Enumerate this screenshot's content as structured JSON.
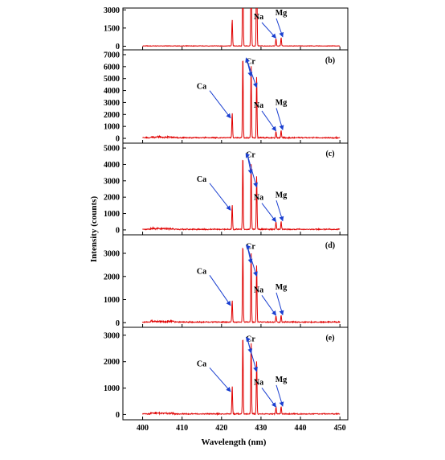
{
  "chart_data": {
    "type": "line",
    "xlabel": "Wavelength (nm)",
    "ylabel": "Intensity (counts)",
    "xlim": [
      395,
      452
    ],
    "x_ticks": [
      400,
      410,
      420,
      430,
      440,
      450
    ],
    "line_color": "#e00000",
    "annotation_color": "#1a3fd0",
    "peak_positions_nm": {
      "Ca": 422.7,
      "Cr1": 425.4,
      "Cr2": 427.5,
      "Cr3": 428.9,
      "Na": 433.8,
      "Mg": 435.1
    },
    "panels": [
      {
        "label": "",
        "ylim": [
          -300,
          3150
        ],
        "y_ticks": [
          0,
          1500,
          3000
        ],
        "y_tick_labels": [
          "0",
          "1500",
          "3000"
        ],
        "peaks": [
          {
            "name": "Ca",
            "x": 422.7,
            "y": 2200
          },
          {
            "name": "Cr1",
            "x": 425.4,
            "y": 9000
          },
          {
            "name": "Cr2",
            "x": 427.5,
            "y": 9000
          },
          {
            "name": "Cr3",
            "x": 428.9,
            "y": 9000
          },
          {
            "name": "Na",
            "x": 433.8,
            "y": 600
          },
          {
            "name": "Mg",
            "x": 435.1,
            "y": 700
          }
        ],
        "annotations": [
          "Na",
          "Mg"
        ]
      },
      {
        "label": "(b)",
        "ylim": [
          -400,
          7400
        ],
        "y_ticks": [
          0,
          1000,
          2000,
          3000,
          4000,
          5000,
          6000,
          7000
        ],
        "y_tick_labels": [
          "0",
          "1000",
          "2000",
          "3000",
          "4000",
          "5000",
          "6000",
          "7000"
        ],
        "peaks": [
          {
            "name": "Ca",
            "x": 422.7,
            "y": 2100
          },
          {
            "name": "Cr1",
            "x": 425.4,
            "y": 7000
          },
          {
            "name": "Cr2",
            "x": 427.5,
            "y": 6100
          },
          {
            "name": "Cr3",
            "x": 428.9,
            "y": 5200
          },
          {
            "name": "Na",
            "x": 433.8,
            "y": 550
          },
          {
            "name": "Mg",
            "x": 435.1,
            "y": 650
          }
        ],
        "annotations": [
          "Ca",
          "Cr",
          "Na",
          "Mg"
        ]
      },
      {
        "label": "(c)",
        "ylim": [
          -300,
          5300
        ],
        "y_ticks": [
          0,
          1000,
          2000,
          3000,
          4000,
          5000
        ],
        "y_tick_labels": [
          "0",
          "1000",
          "2000",
          "3000",
          "4000",
          "5000"
        ],
        "peaks": [
          {
            "name": "Ca",
            "x": 422.7,
            "y": 1500
          },
          {
            "name": "Cr1",
            "x": 425.4,
            "y": 4600
          },
          {
            "name": "Cr2",
            "x": 427.5,
            "y": 4100
          },
          {
            "name": "Cr3",
            "x": 428.9,
            "y": 3300
          },
          {
            "name": "Na",
            "x": 433.8,
            "y": 450
          },
          {
            "name": "Mg",
            "x": 435.1,
            "y": 500
          }
        ],
        "annotations": [
          "Ca",
          "Cr",
          "Na",
          "Mg"
        ]
      },
      {
        "label": "(d)",
        "ylim": [
          -200,
          3800
        ],
        "y_ticks": [
          0,
          1000,
          2000,
          3000
        ],
        "y_tick_labels": [
          "0",
          "1000",
          "2000",
          "3000"
        ],
        "peaks": [
          {
            "name": "Ca",
            "x": 422.7,
            "y": 950
          },
          {
            "name": "Cr1",
            "x": 425.4,
            "y": 3500
          },
          {
            "name": "Cr2",
            "x": 427.5,
            "y": 3050
          },
          {
            "name": "Cr3",
            "x": 428.9,
            "y": 2500
          },
          {
            "name": "Na",
            "x": 433.8,
            "y": 280
          },
          {
            "name": "Mg",
            "x": 435.1,
            "y": 300
          }
        ],
        "annotations": [
          "Ca",
          "Cr",
          "Na",
          "Mg"
        ]
      },
      {
        "label": "(e)",
        "ylim": [
          -200,
          3300
        ],
        "y_ticks": [
          0,
          1000,
          2000,
          3000
        ],
        "y_tick_labels": [
          "0",
          "1000",
          "2000",
          "3000"
        ],
        "peaks": [
          {
            "name": "Ca",
            "x": 422.7,
            "y": 1050
          },
          {
            "name": "Cr1",
            "x": 425.4,
            "y": 3050
          },
          {
            "name": "Cr2",
            "x": 427.5,
            "y": 2750
          },
          {
            "name": "Cr3",
            "x": 428.9,
            "y": 2050
          },
          {
            "name": "Na",
            "x": 433.8,
            "y": 250
          },
          {
            "name": "Mg",
            "x": 435.1,
            "y": 280
          }
        ],
        "annotations": [
          "Ca",
          "Cr",
          "Na",
          "Mg"
        ]
      }
    ]
  }
}
